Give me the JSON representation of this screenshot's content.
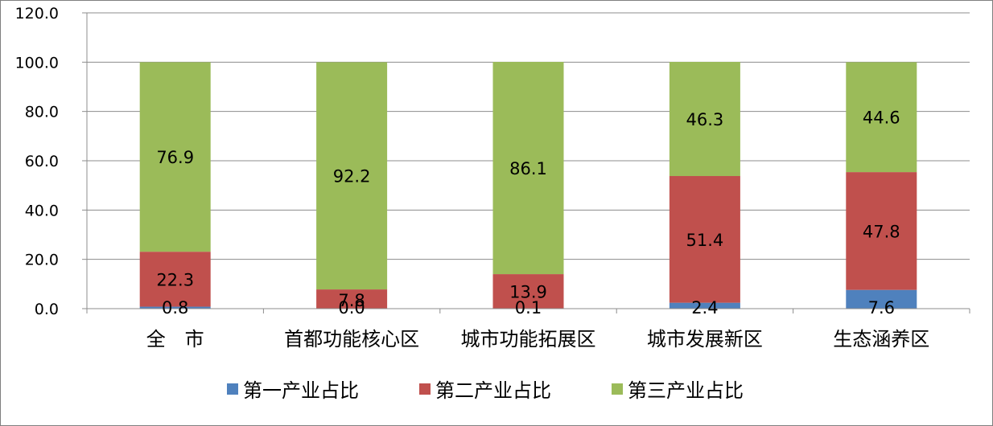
{
  "chart_data": {
    "type": "bar",
    "stacked": true,
    "title": "",
    "xlabel": "",
    "ylabel": "",
    "ylim": [
      0,
      120
    ],
    "y_ticks": [
      "0.0",
      "20.0",
      "40.0",
      "60.0",
      "80.0",
      "100.0",
      "120.0"
    ],
    "grid": true,
    "legend_position": "bottom",
    "categories": [
      "全　市",
      "首都功能核心区",
      "城市功能拓展区",
      "城市发展新区",
      "生态涵养区"
    ],
    "series": [
      {
        "name": "第一产业占比",
        "color": "#4f81bd",
        "values": [
          0.8,
          0.0,
          0.1,
          2.4,
          7.6
        ],
        "labels": [
          "0.8",
          "0.0",
          "0.1",
          "2.4",
          "7.6"
        ]
      },
      {
        "name": "第二产业占比",
        "color": "#c0504d",
        "values": [
          22.3,
          7.8,
          13.9,
          51.4,
          47.8
        ],
        "labels": [
          "22.3",
          "7.8",
          "13.9",
          "51.4",
          "47.8"
        ]
      },
      {
        "name": "第三产业占比",
        "color": "#9bbb59",
        "values": [
          76.9,
          92.2,
          86.1,
          46.3,
          44.6
        ],
        "labels": [
          "76.9",
          "92.2",
          "86.1",
          "46.3",
          "44.6"
        ]
      }
    ]
  }
}
